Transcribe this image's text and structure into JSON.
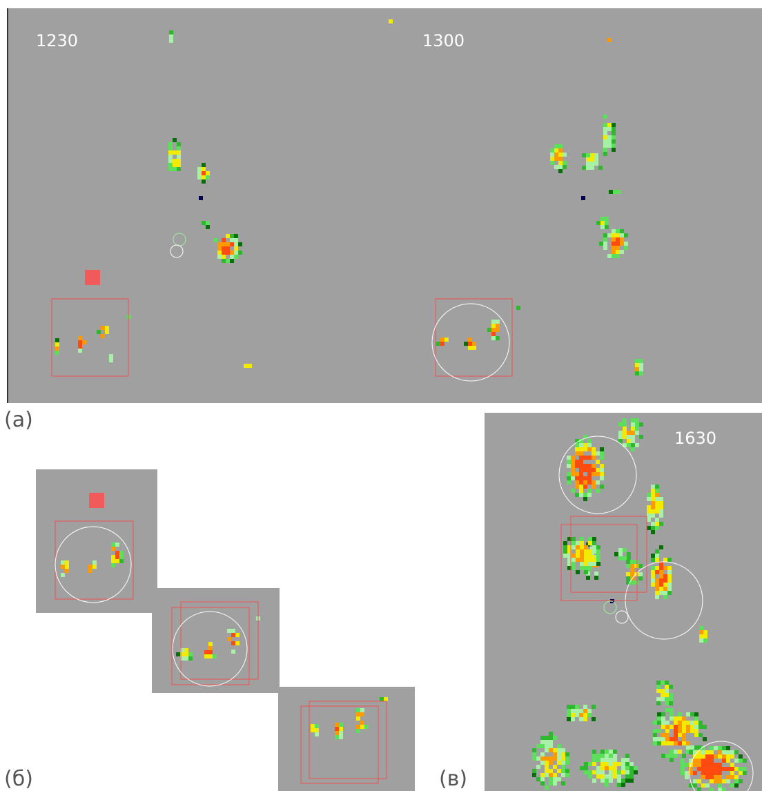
{
  "panels": {
    "a": {
      "label": "(a)",
      "times": [
        "1230",
        "1300"
      ]
    },
    "b": {
      "label": "(б)"
    },
    "c": {
      "label": "(в)",
      "time": "1630"
    }
  }
}
